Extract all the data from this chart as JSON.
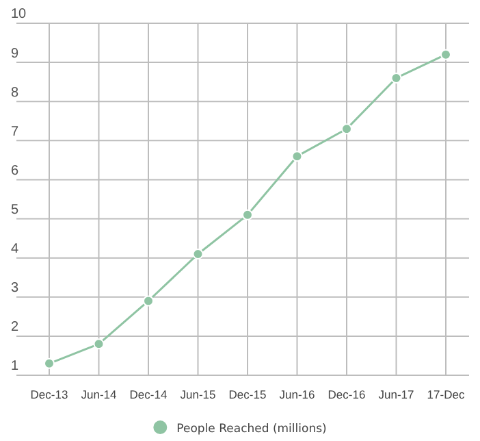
{
  "chart_data": {
    "type": "line",
    "categories": [
      "Dec-13",
      "Jun-14",
      "Dec-14",
      "Jun-15",
      "Dec-15",
      "Jun-16",
      "Dec-16",
      "Jun-17",
      "17-Dec"
    ],
    "series": [
      {
        "name": "People Reached (millions)",
        "color": "#8fc4a3",
        "values": [
          1.3,
          1.8,
          2.9,
          4.1,
          5.1,
          6.6,
          7.3,
          8.6,
          9.2
        ]
      }
    ],
    "ylim": [
      1,
      10
    ],
    "yticks": [
      1,
      2,
      3,
      4,
      5,
      6,
      7,
      8,
      9,
      10
    ],
    "grid": true,
    "legend": "bottom",
    "marker": "circle",
    "line_style": "solid"
  }
}
